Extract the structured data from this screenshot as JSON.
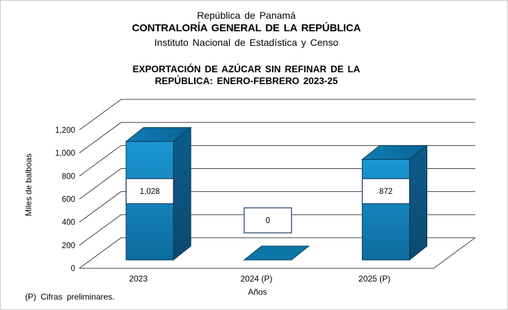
{
  "header": {
    "line1": "República de Panamá",
    "line2": "CONTRALORÍA GENERAL DE LA REPÚBLICA",
    "line3": "Instituto Nacional de Estadística y Censo"
  },
  "title": {
    "line1": "EXPORTACIÓN DE AZÚCAR SIN REFINAR DE LA",
    "line2": "REPÚBLICA: ENERO-FEBRERO 2023-25"
  },
  "footnote": "(P) Cifras preliminares.",
  "chart_data": {
    "type": "bar",
    "style": "3d-column",
    "categories": [
      "2023",
      "2024 (P)",
      "2025 (P)"
    ],
    "values": [
      1028,
      0,
      872
    ],
    "data_labels": [
      "1,028",
      "0",
      "872"
    ],
    "title": "EXPORTACIÓN DE AZÚCAR SIN REFINAR DE LA REPÚBLICA: ENERO-FEBRERO 2023-25",
    "xlabel": "Años",
    "ylabel": "Miles de balboas",
    "ylim": [
      0,
      1200
    ],
    "ytick_step": 200,
    "grid": true,
    "legend": false
  },
  "colors": {
    "bar_front_top": "#1b97d2",
    "bar_front_bottom": "#0d6ca0",
    "bar_top_left": "#0e7fb4",
    "bar_top_right": "#0a6296",
    "bar_side_top": "#0b5e8c",
    "bar_side_bottom": "#0c4870",
    "bar_flat": "#0d76a8",
    "bar_outline": "#0a3c58",
    "gridline": "#404040",
    "label_box_border": "#17375e",
    "label_box_fill": "#ffffff"
  }
}
